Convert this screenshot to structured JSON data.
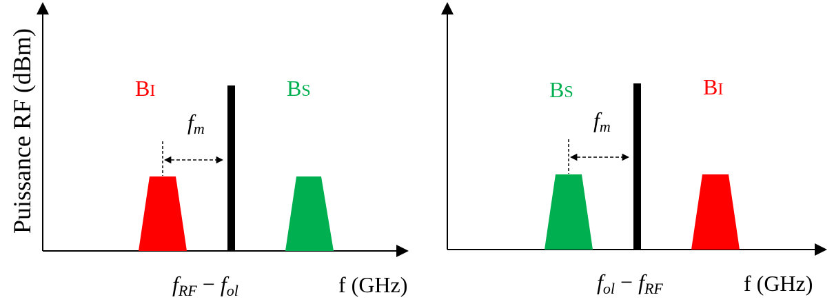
{
  "colors": {
    "image_band": "#ff0000",
    "signal_band": "#00b050",
    "axis": "#000000",
    "carrier": "#000000"
  },
  "y_axis_label": "Puissance RF (dBm)",
  "panels": [
    {
      "x_axis_label": "f (GHz)",
      "center_label": {
        "f": "f",
        "sub1": "RF",
        "minus": "−",
        "f2": "f",
        "sub2": "ol"
      },
      "spacing_label": {
        "f": "f",
        "sub": "m"
      },
      "left_band": {
        "big": "B",
        "small": "I",
        "color": "#ff0000"
      },
      "right_band": {
        "big": "B",
        "small": "S",
        "color": "#00b050"
      }
    },
    {
      "x_axis_label": "f (GHz)",
      "center_label": {
        "f": "f",
        "sub1": "ol",
        "minus": "−",
        "f2": "f",
        "sub2": "RF"
      },
      "spacing_label": {
        "f": "f",
        "sub": "m"
      },
      "left_band": {
        "big": "B",
        "small": "S",
        "color": "#00b050"
      },
      "right_band": {
        "big": "B",
        "small": "I",
        "color": "#ff0000"
      }
    }
  ]
}
